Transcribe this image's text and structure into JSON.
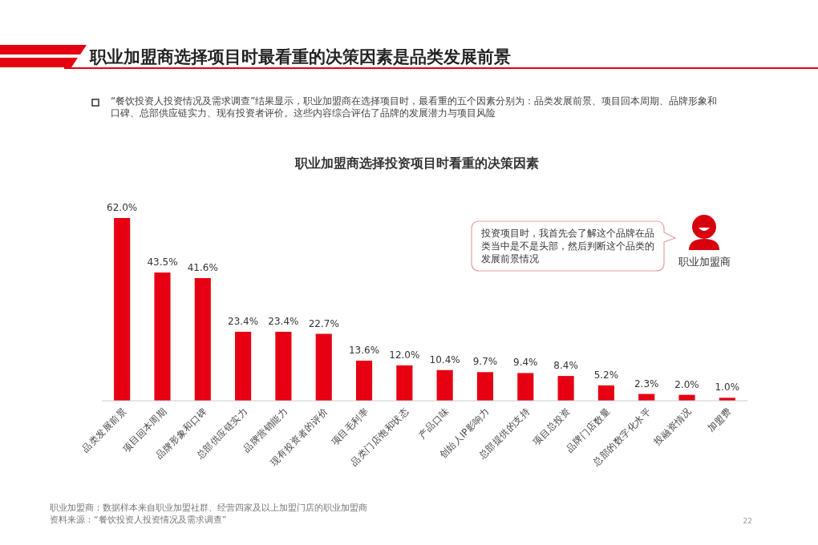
{
  "chart_data": {
    "type": "bar",
    "title": "职业加盟商选择项目时最看重的决策因素是品类发展前景",
    "subtitle": "“餐饮投资人投资情况及需求调查”结果显示，职业加盟商在选择项目时，最看重的五个因素分别为：品类发展前景、项目回本周期、品牌形象和口碑、总部供应链实力、现有投资者评价。这些内容综合评估了品牌的发展潜力与项目风险",
    "categories": [
      "品类发展前景",
      "项目回本周期",
      "品牌形象和口碑",
      "总部供应链实力",
      "品牌营销能力",
      "现有投资者的评价",
      "项目毛利率",
      "品类门店饱和状态",
      "产品口味",
      "创始人IP影响力",
      "总部提供的支持",
      "项目总投资",
      "品牌门店数量",
      "总部的数字化水平",
      "投融资情况",
      "加盟费"
    ],
    "values": [
      62.0,
      43.5,
      41.6,
      23.4,
      23.4,
      22.7,
      13.6,
      12.0,
      10.4,
      9.7,
      9.4,
      8.4,
      5.2,
      2.3,
      2.0,
      1.0
    ],
    "value_labels": [
      "62.0%",
      "43.5%",
      "41.6%",
      "23.4%",
      "23.4%",
      "22.7%",
      "13.6%",
      "12.0%",
      "10.4%",
      "9.7%",
      "9.4%",
      "8.4%",
      "5.2%",
      "2.3%",
      "2.0%",
      "1.0%"
    ],
    "color": "#e60012",
    "annotations": [
      "职业加盟商选择投资项目时看重的决策因素",
      "投资项目时，我首先会了解这个品牌在品类当中是不是头部，然后判断这个品类的发展前景情况",
      "职业加盟商",
      "职业加盟商：数据样本来自职业加盟社群、经营四家及以上加盟门店的职业加盟商",
      "资料来源：“餐饮投资人投资情况及需求调查”",
      "22"
    ]
  }
}
